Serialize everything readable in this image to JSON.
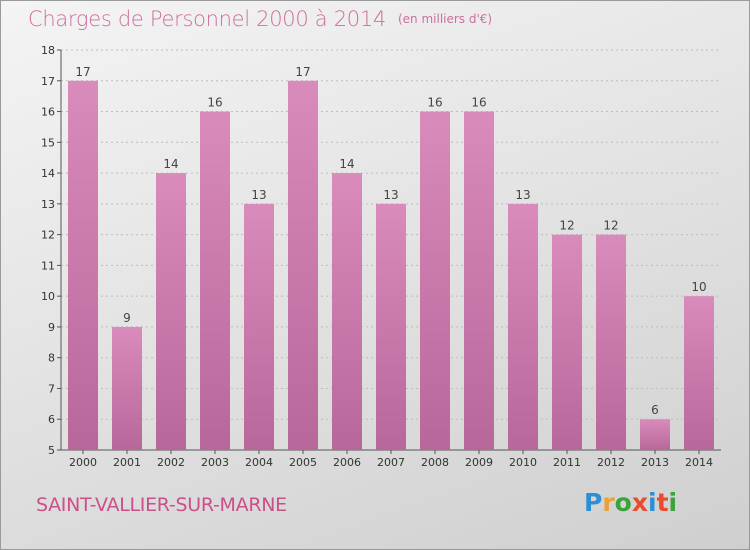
{
  "title": "Charges de Personnel 2000 à 2014",
  "subtitle": "(en milliers d'€)",
  "town": "SAINT-VALLIER-SUR-MARNE",
  "logo": {
    "letters": [
      "P",
      "r",
      "o",
      "x",
      "i",
      "t",
      "i"
    ],
    "colors": [
      "#2a8fd6",
      "#e9a23a",
      "#3aa33a",
      "#e94b2e",
      "#2a8fd6",
      "#e94b2e",
      "#3aa33a"
    ]
  },
  "colors": {
    "bar": "#d98bbb",
    "bar_dark": "#b8679a",
    "title": "#cc6f9e",
    "grid": "#bdbdbd"
  },
  "chart_data": {
    "type": "bar",
    "categories": [
      "2000",
      "2001",
      "2002",
      "2003",
      "2004",
      "2005",
      "2006",
      "2007",
      "2008",
      "2009",
      "2010",
      "2011",
      "2012",
      "2013",
      "2014"
    ],
    "values": [
      17,
      9,
      14,
      16,
      13,
      17,
      14,
      13,
      16,
      16,
      13,
      12,
      12,
      6,
      10
    ],
    "title": "Charges de Personnel 2000 à 2014",
    "subtitle": "(en milliers d'€)",
    "ylim": [
      5,
      18
    ],
    "yticks": [
      5,
      6,
      7,
      8,
      9,
      10,
      11,
      12,
      13,
      14,
      15,
      16,
      17,
      18
    ],
    "grid": true,
    "legend": "none"
  }
}
